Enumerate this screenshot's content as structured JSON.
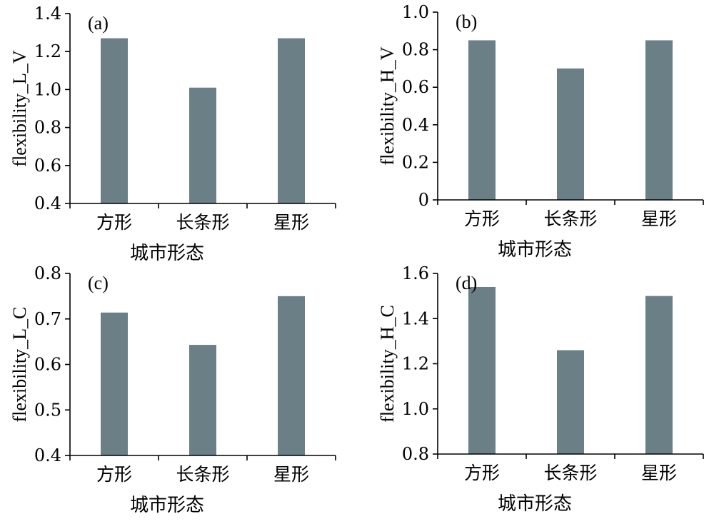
{
  "chart_data": [
    {
      "type": "bar",
      "panel_label": "(a)",
      "categories": [
        "方形",
        "长条形",
        "星形"
      ],
      "values": [
        1.27,
        1.01,
        1.27
      ],
      "xlabel": "城市形态",
      "ylabel": "flexibility_L_V",
      "ylim": [
        0.4,
        1.4
      ],
      "yticks": [
        "0.4",
        "0.6",
        "0.8",
        "1.0",
        "1.2",
        "1.4"
      ],
      "grid": false,
      "bar_color": "#6b7f87"
    },
    {
      "type": "bar",
      "panel_label": "(b)",
      "categories": [
        "方形",
        "长条形",
        "星形"
      ],
      "values": [
        0.85,
        0.7,
        0.85
      ],
      "xlabel": "城市形态",
      "ylabel": "flexibility_H_V",
      "ylim": [
        0,
        1.0
      ],
      "yticks": [
        "0",
        "0.2",
        "0.4",
        "0.6",
        "0.8",
        "1.0"
      ],
      "grid": false,
      "bar_color": "#6b7f87"
    },
    {
      "type": "bar",
      "panel_label": "(c)",
      "categories": [
        "方形",
        "长条形",
        "星形"
      ],
      "values": [
        0.714,
        0.643,
        0.75
      ],
      "xlabel": "城市形态",
      "ylabel": "flexibility_L_C",
      "ylim": [
        0.4,
        0.8
      ],
      "yticks": [
        "0.4",
        "0.5",
        "0.6",
        "0.7",
        "0.8"
      ],
      "grid": false,
      "bar_color": "#6b7f87"
    },
    {
      "type": "bar",
      "panel_label": "(d)",
      "categories": [
        "方形",
        "长条形",
        "星形"
      ],
      "values": [
        1.54,
        1.26,
        1.5
      ],
      "xlabel": "城市形态",
      "ylabel": "flexibility_H_C",
      "ylim": [
        0.8,
        1.6
      ],
      "yticks": [
        "0.8",
        "1.0",
        "1.2",
        "1.4",
        "1.6"
      ],
      "grid": false,
      "bar_color": "#6b7f87"
    }
  ]
}
